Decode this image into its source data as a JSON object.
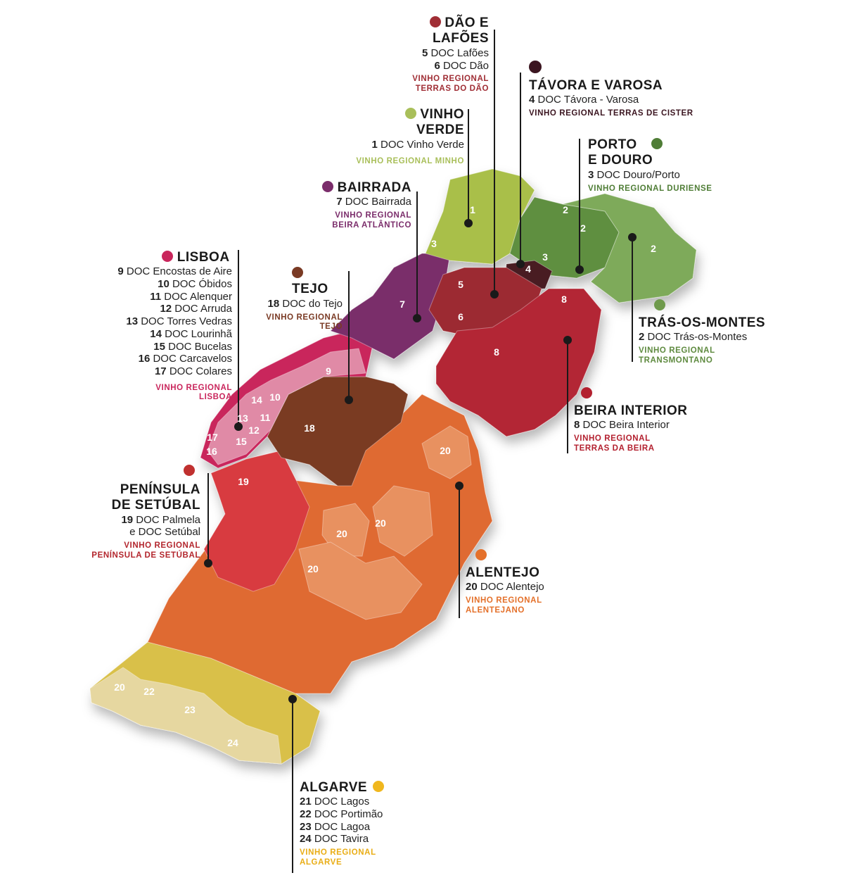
{
  "colors": {
    "vinho_verde": "#a9bf4a",
    "douro": "#5e8f3f",
    "tras": "#7eaa5a",
    "tavora": "#4a1c22",
    "dao": "#9c2a33",
    "bairrada": "#7a2d6b",
    "beira": "#b32636",
    "lisboa": "#c9265c",
    "lisboa_light": "#e08aa6",
    "tejo": "#7a3a24",
    "setubal": "#d83a3f",
    "alentejo": "#df6a33",
    "alentejo_light": "#e89160",
    "algarve": "#d9c04a",
    "algarve_light": "#e6d7a0"
  },
  "map_numbers": [
    "1",
    "2",
    "2",
    "2",
    "3",
    "3",
    "4",
    "5",
    "6",
    "7",
    "8",
    "8",
    "9",
    "10",
    "11",
    "12",
    "13",
    "14",
    "15",
    "16",
    "17",
    "18",
    "19",
    "20",
    "20",
    "20",
    "20",
    "20",
    "21",
    "22",
    "23",
    "24"
  ],
  "regions": {
    "dao": {
      "title": "DÃO E LAFÕES",
      "title_l1": "DÃO E",
      "title_l2": "LAFÕES",
      "docs": [
        {
          "n": "5",
          "name": "DOC Lafões"
        },
        {
          "n": "6",
          "name": "DOC Dão"
        }
      ],
      "vr_l1": "VINHO REGIONAL",
      "vr_l2": "TERRAS DO DÃO",
      "dot_color": "#a02e35",
      "vr_color": "#a02e35"
    },
    "tavora": {
      "title": "TÁVORA E VAROSA",
      "docs": [
        {
          "n": "4",
          "name": "DOC Távora - Varosa"
        }
      ],
      "vr_l1": "VINHO REGIONAL TERRAS DE CISTER",
      "dot_color": "#3b1520",
      "vr_color": "#3b1520"
    },
    "vinho_verde": {
      "title_l1": "VINHO",
      "title_l2": "VERDE",
      "docs": [
        {
          "n": "1",
          "name": "DOC Vinho Verde"
        }
      ],
      "vr_l1": "VINHO REGIONAL MINHO",
      "dot_color": "#a9bf5a",
      "vr_color": "#a9bf5a"
    },
    "porto": {
      "title_l1": "PORTO",
      "title_l2": "E DOURO",
      "docs": [
        {
          "n": "3",
          "name": "DOC Douro/Porto"
        }
      ],
      "vr_l1": "VINHO REGIONAL DURIENSE",
      "dot_color": "#4f7d36",
      "vr_color": "#4f7d36"
    },
    "bairrada": {
      "title": "BAIRRADA",
      "docs": [
        {
          "n": "7",
          "name": "DOC Bairrada"
        }
      ],
      "vr_l1": "VINHO REGIONAL",
      "vr_l2": "BEIRA ATLÂNTICO",
      "dot_color": "#7b2d6b",
      "vr_color": "#7b2d6b"
    },
    "lisboa": {
      "title": "LISBOA",
      "docs": [
        {
          "n": "9",
          "name": "DOC Encostas de Aire"
        },
        {
          "n": "10",
          "name": "DOC Óbidos"
        },
        {
          "n": "11",
          "name": "DOC Alenquer"
        },
        {
          "n": "12",
          "name": "DOC Arruda"
        },
        {
          "n": "13",
          "name": "DOC Torres Vedras"
        },
        {
          "n": "14",
          "name": "DOC Lourinhã"
        },
        {
          "n": "15",
          "name": "DOC Bucelas"
        },
        {
          "n": "16",
          "name": "DOC Carcavelos"
        },
        {
          "n": "17",
          "name": "DOC Colares"
        }
      ],
      "vr_l1": "VINHO REGIONAL",
      "vr_l2": "LISBOA",
      "dot_color": "#c9265c",
      "vr_color": "#c9265c"
    },
    "tejo": {
      "title": "TEJO",
      "docs": [
        {
          "n": "18",
          "name": "DOC do Tejo"
        }
      ],
      "vr_l1": "VINHO REGIONAL",
      "vr_l2": "TEJO",
      "dot_color": "#7a3a24",
      "vr_color": "#7a3a24"
    },
    "tras": {
      "title": "TRÁS-OS-MONTES",
      "docs": [
        {
          "n": "2",
          "name": "DOC Trás-os-Montes"
        }
      ],
      "vr_l1": "VINHO REGIONAL",
      "vr_l2": "TRANSMONTANO",
      "dot_color": "#6f9a4c",
      "vr_color": "#5e8a3f"
    },
    "beira": {
      "title": "BEIRA INTERIOR",
      "docs": [
        {
          "n": "8",
          "name": "DOC Beira Interior"
        }
      ],
      "vr_l1": "VINHO REGIONAL",
      "vr_l2": "TERRAS DA BEIRA",
      "dot_color": "#b3202f",
      "vr_color": "#b3202f"
    },
    "setubal": {
      "title_l1": "PENÍNSULA",
      "title_l2": "DE SETÚBAL",
      "docs_l1": {
        "n": "19",
        "name": "DOC Palmela"
      },
      "docs_l2": "e DOC Setúbal",
      "vr_l1": "VINHO REGIONAL",
      "vr_l2": "PENÍNSULA DE SETÚBAL",
      "dot_color": "#c0302f",
      "vr_color": "#b3262d"
    },
    "alentejo": {
      "title": "ALENTEJO",
      "docs": [
        {
          "n": "20",
          "name": "DOC Alentejo"
        }
      ],
      "vr_l1": "VINHO REGIONAL",
      "vr_l2": "ALENTEJANO",
      "dot_color": "#e4702a",
      "vr_color": "#e4702a"
    },
    "algarve": {
      "title": "ALGARVE",
      "docs": [
        {
          "n": "21",
          "name": "DOC Lagos"
        },
        {
          "n": "22",
          "name": "DOC Portimão"
        },
        {
          "n": "23",
          "name": "DOC Lagoa"
        },
        {
          "n": "24",
          "name": "DOC Tavira"
        }
      ],
      "vr_l1": "VINHO REGIONAL",
      "vr_l2": "ALGARVE",
      "dot_color": "#f0b71e",
      "vr_color": "#e9ad15"
    }
  }
}
